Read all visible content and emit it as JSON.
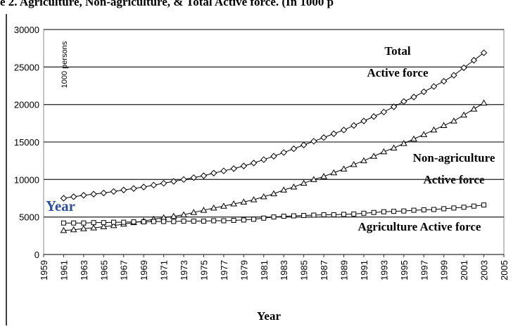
{
  "chart_data": {
    "type": "line",
    "title": "e 2. Agriculture, Non-agriculture, & Total Active force. (In 1000 p",
    "x_label": "Year",
    "y_label": "1000 persons",
    "annotations": [
      "Total",
      "Active force",
      "Non-agriculture",
      "Active force",
      "Agriculture Active force",
      "Year"
    ],
    "x": [
      1961,
      1962,
      1963,
      1964,
      1965,
      1966,
      1967,
      1968,
      1969,
      1970,
      1971,
      1972,
      1973,
      1974,
      1975,
      1976,
      1977,
      1978,
      1979,
      1980,
      1981,
      1982,
      1983,
      1984,
      1985,
      1986,
      1987,
      1988,
      1989,
      1990,
      1991,
      1992,
      1993,
      1994,
      1995,
      1996,
      1997,
      1998,
      1999,
      2000,
      2001,
      2002,
      2003
    ],
    "series": [
      {
        "name": "Total Active force",
        "color": "#000000",
        "marker": "diamond",
        "values": [
          7500,
          7700,
          7900,
          8050,
          8200,
          8400,
          8600,
          8800,
          9000,
          9250,
          9500,
          9750,
          10000,
          10250,
          10500,
          10850,
          11150,
          11450,
          11800,
          12200,
          12650,
          13100,
          13600,
          14100,
          14600,
          15100,
          15600,
          16100,
          16600,
          17200,
          17800,
          18400,
          19000,
          19700,
          20400,
          21000,
          21700,
          22400,
          23100,
          23900,
          24900,
          25900,
          26900
        ]
      },
      {
        "name": "Non-agriculture Active force",
        "color": "#000000",
        "marker": "triangle",
        "values": [
          3200,
          3300,
          3450,
          3550,
          3700,
          3850,
          4050,
          4250,
          4450,
          4700,
          4900,
          5100,
          5300,
          5600,
          5900,
          6200,
          6450,
          6750,
          7000,
          7300,
          7700,
          8100,
          8600,
          9000,
          9500,
          10000,
          10400,
          10900,
          11400,
          12000,
          12500,
          13100,
          13700,
          14200,
          14800,
          15400,
          16000,
          16600,
          17200,
          17800,
          18600,
          19400,
          20200
        ]
      },
      {
        "name": "Agriculture Active force",
        "color": "#000000",
        "marker": "square",
        "values": [
          4200,
          4200,
          4200,
          4250,
          4250,
          4300,
          4300,
          4350,
          4350,
          4400,
          4400,
          4400,
          4450,
          4450,
          4450,
          4500,
          4500,
          4550,
          4600,
          4700,
          4850,
          5000,
          5100,
          5150,
          5200,
          5250,
          5300,
          5300,
          5350,
          5400,
          5500,
          5600,
          5700,
          5750,
          5800,
          5900,
          5950,
          6000,
          6100,
          6200,
          6300,
          6450,
          6600
        ]
      }
    ],
    "xlim": [
      1959,
      2005
    ],
    "xticks": [
      1959,
      1961,
      1963,
      1965,
      1967,
      1969,
      1971,
      1973,
      1975,
      1977,
      1979,
      1981,
      1983,
      1985,
      1987,
      1989,
      1991,
      1993,
      1995,
      1997,
      1999,
      2001,
      2003,
      2005
    ],
    "ylim": [
      0,
      30000
    ],
    "yticks": [
      0,
      5000,
      10000,
      15000,
      20000,
      25000,
      30000
    ],
    "grid": true
  }
}
